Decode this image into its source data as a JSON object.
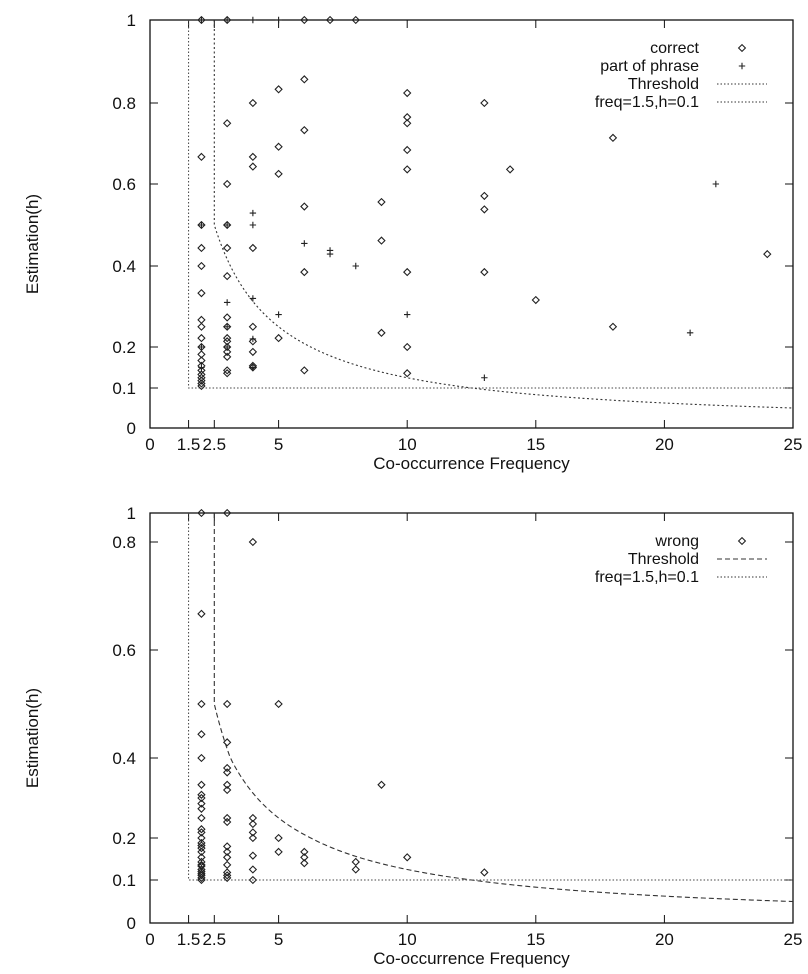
{
  "chart_data": [
    {
      "type": "scatter",
      "xlabel": "Co-occurrence Frequency",
      "ylabel": "Estimation(h)",
      "xlim": [
        0,
        25
      ],
      "ylim": [
        0,
        1
      ],
      "x_ticks": [
        "0",
        "1.5",
        "2.5",
        "5",
        "10",
        "15",
        "20",
        "25"
      ],
      "y_ticks": [
        "0",
        "0.1",
        "0.2",
        "0.4",
        "0.6",
        "0.8",
        "1"
      ],
      "legend_position": "top-right",
      "series": [
        {
          "name": "correct",
          "marker": "diamond",
          "points": [
            [
              2,
              1
            ],
            [
              3,
              1
            ],
            [
              6,
              1
            ],
            [
              7,
              1
            ],
            [
              8,
              1
            ],
            [
              2,
              0.667
            ],
            [
              3,
              0.75
            ],
            [
              4,
              0.8
            ],
            [
              5,
              0.833
            ],
            [
              6,
              0.857
            ],
            [
              3,
              0.6
            ],
            [
              4,
              0.667
            ],
            [
              4,
              0.643
            ],
            [
              5,
              0.692
            ],
            [
              6,
              0.733
            ],
            [
              5,
              0.625
            ],
            [
              6,
              0.545
            ],
            [
              2,
              0.5
            ],
            [
              3,
              0.5
            ],
            [
              2,
              0.444
            ],
            [
              3,
              0.444
            ],
            [
              4,
              0.444
            ],
            [
              2,
              0.4
            ],
            [
              3,
              0.375
            ],
            [
              2,
              0.333
            ],
            [
              6,
              0.385
            ],
            [
              9,
              0.462
            ],
            [
              10,
              0.385
            ],
            [
              10,
              0.824
            ],
            [
              10,
              0.765
            ],
            [
              10,
              0.75
            ],
            [
              10,
              0.684
            ],
            [
              10,
              0.636
            ],
            [
              9,
              0.556
            ],
            [
              13,
              0.8
            ],
            [
              13,
              0.571
            ],
            [
              13,
              0.538
            ],
            [
              13,
              0.385
            ],
            [
              14,
              0.636
            ],
            [
              15,
              0.316
            ],
            [
              18,
              0.714
            ],
            [
              18,
              0.25
            ],
            [
              24,
              0.429
            ],
            [
              2,
              0.267
            ],
            [
              2,
              0.25
            ],
            [
              2,
              0.222
            ],
            [
              2,
              0.2
            ],
            [
              2,
              0.182
            ],
            [
              2,
              0.167
            ],
            [
              2,
              0.154
            ],
            [
              2,
              0.143
            ],
            [
              2,
              0.133
            ],
            [
              2,
              0.125
            ],
            [
              2,
              0.118
            ],
            [
              2,
              0.111
            ],
            [
              2,
              0.105
            ],
            [
              3,
              0.273
            ],
            [
              3,
              0.25
            ],
            [
              3,
              0.222
            ],
            [
              3,
              0.214
            ],
            [
              3,
              0.2
            ],
            [
              3,
              0.188
            ],
            [
              3,
              0.176
            ],
            [
              3,
              0.143
            ],
            [
              3,
              0.136
            ],
            [
              4,
              0.25
            ],
            [
              4,
              0.214
            ],
            [
              4,
              0.188
            ],
            [
              4,
              0.154
            ],
            [
              4,
              0.15
            ],
            [
              5,
              0.222
            ],
            [
              6,
              0.143
            ],
            [
              9,
              0.235
            ],
            [
              10,
              0.2
            ],
            [
              10,
              0.136
            ]
          ]
        },
        {
          "name": "part of phrase",
          "marker": "plus",
          "points": [
            [
              2,
              1
            ],
            [
              3,
              1
            ],
            [
              4,
              1
            ],
            [
              5,
              1
            ],
            [
              2,
              0.5
            ],
            [
              3,
              0.5
            ],
            [
              4,
              0.529
            ],
            [
              4,
              0.5
            ],
            [
              6,
              0.455
            ],
            [
              7,
              0.438
            ],
            [
              7,
              0.429
            ],
            [
              8,
              0.4
            ],
            [
              3,
              0.31
            ],
            [
              4,
              0.32
            ],
            [
              3,
              0.25
            ],
            [
              4,
              0.22
            ],
            [
              5,
              0.28
            ],
            [
              10,
              0.28
            ],
            [
              13,
              0.125
            ],
            [
              21,
              0.235
            ],
            [
              22,
              0.6
            ],
            [
              2,
              0.2
            ],
            [
              2,
              0.15
            ],
            [
              3,
              0.2
            ],
            [
              4,
              0.15
            ]
          ]
        }
      ],
      "lines": [
        {
          "name": "Threshold",
          "style": "dotted",
          "description": "x=2.5 vertical from y=1 down to y=0.5, then h=1.25/freq curve to x=25"
        },
        {
          "name": "freq=1.5,h=0.1",
          "style": "dotted",
          "description": "x=1.5 vertical from y=1 down to y=0.1, then horizontal at y=0.1 to x=25"
        }
      ]
    },
    {
      "type": "scatter",
      "xlabel": "Co-occurrence Frequency",
      "ylabel": "Estimation(h)",
      "xlim": [
        0,
        25
      ],
      "ylim": [
        0,
        1
      ],
      "x_ticks": [
        "0",
        "1.5",
        "2.5",
        "5",
        "10",
        "15",
        "20",
        "25"
      ],
      "y_ticks": [
        "0",
        "0.1",
        "0.2",
        "0.4",
        "0.6",
        "0.8",
        "1"
      ],
      "legend_position": "top-right",
      "series": [
        {
          "name": "wrong",
          "marker": "diamond",
          "points": [
            [
              2,
              1
            ],
            [
              3,
              1
            ],
            [
              4,
              0.8
            ],
            [
              2,
              0.667
            ],
            [
              2,
              0.5
            ],
            [
              3,
              0.5
            ],
            [
              5,
              0.5
            ],
            [
              2,
              0.444
            ],
            [
              3,
              0.429
            ],
            [
              2,
              0.4
            ],
            [
              3,
              0.375
            ],
            [
              3,
              0.364
            ],
            [
              9,
              0.333
            ],
            [
              2,
              0.333
            ],
            [
              3,
              0.333
            ],
            [
              3,
              0.32
            ],
            [
              2,
              0.308
            ],
            [
              2,
              0.3
            ],
            [
              2,
              0.286
            ],
            [
              2,
              0.273
            ],
            [
              2,
              0.25
            ],
            [
              3,
              0.25
            ],
            [
              3,
              0.24
            ],
            [
              4,
              0.25
            ],
            [
              4,
              0.235
            ],
            [
              2,
              0.222
            ],
            [
              2,
              0.214
            ],
            [
              2,
              0.2
            ],
            [
              4,
              0.214
            ],
            [
              4,
              0.2
            ],
            [
              5,
              0.2
            ],
            [
              2,
              0.188
            ],
            [
              2,
              0.182
            ],
            [
              3,
              0.18
            ],
            [
              2,
              0.176
            ],
            [
              3,
              0.167
            ],
            [
              2,
              0.167
            ],
            [
              5,
              0.167
            ],
            [
              6,
              0.167
            ],
            [
              6,
              0.154
            ],
            [
              2,
              0.154
            ],
            [
              3,
              0.154
            ],
            [
              4,
              0.158
            ],
            [
              8,
              0.143
            ],
            [
              2,
              0.143
            ],
            [
              10,
              0.154
            ],
            [
              6,
              0.14
            ],
            [
              2,
              0.136
            ],
            [
              3,
              0.136
            ],
            [
              2,
              0.133
            ],
            [
              4,
              0.125
            ],
            [
              2,
              0.125
            ],
            [
              8,
              0.125
            ],
            [
              2,
              0.12
            ],
            [
              3,
              0.118
            ],
            [
              13,
              0.118
            ],
            [
              2,
              0.115
            ],
            [
              2,
              0.111
            ],
            [
              3,
              0.111
            ],
            [
              2,
              0.105
            ],
            [
              3,
              0.105
            ],
            [
              4,
              0.1
            ],
            [
              2,
              0.1
            ]
          ]
        }
      ],
      "lines": [
        {
          "name": "Threshold",
          "style": "dashed",
          "description": "x=2.5 vertical from y=1 down to y=0.5, then h=1.25/freq curve to x=25"
        },
        {
          "name": "freq=1.5,h=0.1",
          "style": "dotted",
          "description": "x=1.5 vertical from y=1 down to y=0.1, then horizontal at y=0.1 to x=25"
        }
      ]
    }
  ]
}
